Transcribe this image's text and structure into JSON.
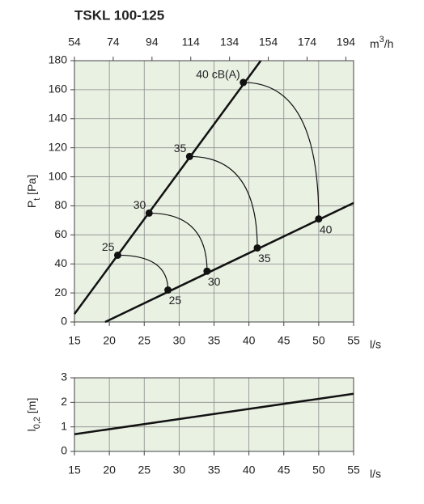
{
  "chart_data": [
    {
      "type": "line",
      "title": "TSKL 100-125",
      "x_label": "l/s",
      "x2_label": {
        "main": "m",
        "sup": "3",
        "tail": "/h"
      },
      "y_label": {
        "main": "P",
        "sub": "t",
        "tail": " [Pa]"
      },
      "xlim": [
        15,
        55
      ],
      "xticks": [
        15,
        20,
        25,
        30,
        35,
        40,
        45,
        50,
        55
      ],
      "x2lim": [
        54,
        198
      ],
      "x2ticks": [
        54,
        74,
        94,
        114,
        134,
        154,
        174,
        194
      ],
      "ylim": [
        0,
        180
      ],
      "yticks": [
        0,
        20,
        40,
        60,
        80,
        100,
        120,
        140,
        160,
        180
      ],
      "grid": true,
      "background": "#e9f1e3",
      "color": "#111111",
      "series": [
        {
          "x": [
            15,
            41.7
          ],
          "values": [
            5.5,
            180
          ]
        },
        {
          "x": [
            19.4,
            55
          ],
          "values": [
            0,
            82
          ]
        }
      ],
      "sound_curves": [
        {
          "x": [
            21.2,
            28.4
          ],
          "values": [
            46,
            22
          ],
          "labels": [
            "25",
            "25"
          ]
        },
        {
          "x": [
            25.7,
            34
          ],
          "values": [
            75,
            35
          ],
          "labels": [
            "30",
            "30"
          ]
        },
        {
          "x": [
            31.5,
            41.2
          ],
          "values": [
            114,
            51
          ],
          "labels": [
            "35",
            "35"
          ]
        },
        {
          "x": [
            39.2,
            50
          ],
          "values": [
            165,
            71
          ],
          "labels": [
            "40 cB(A)",
            "40"
          ]
        }
      ]
    },
    {
      "type": "line",
      "x_label": "l/s",
      "y_label": {
        "main": "l",
        "sub": "0,2",
        "tail": " [m]"
      },
      "xlim": [
        15,
        55
      ],
      "xticks": [
        15,
        20,
        25,
        30,
        35,
        40,
        45,
        50,
        55
      ],
      "ylim": [
        0,
        3
      ],
      "yticks": [
        0,
        1,
        2,
        3
      ],
      "grid": true,
      "background": "#e9f1e3",
      "color": "#111111",
      "series": [
        {
          "x": [
            15,
            55
          ],
          "values": [
            0.7,
            2.35
          ]
        }
      ]
    }
  ]
}
